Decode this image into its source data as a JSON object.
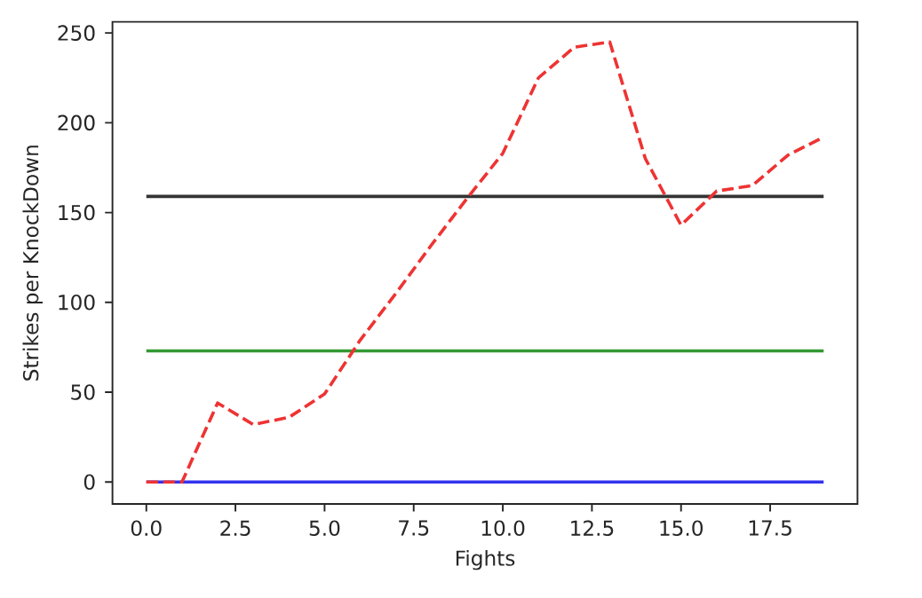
{
  "chart_data": {
    "type": "line",
    "xlabel": "Fights",
    "ylabel": "Strikes per KnockDown",
    "xlim": [
      -0.95,
      19.95
    ],
    "ylim": [
      -12.2,
      256.2
    ],
    "xticks": [
      {
        "value": 0,
        "label": "0.0"
      },
      2.5,
      {
        "value": 5,
        "label": "5.0"
      },
      7.5,
      {
        "value": 10,
        "label": "10.0"
      },
      12.5,
      {
        "value": 15,
        "label": "15.0"
      },
      17.5
    ],
    "yticks": [
      0,
      50,
      100,
      150,
      200,
      250
    ],
    "series": [
      {
        "color": "#333333",
        "x": [
          0,
          19
        ],
        "values": [
          159,
          159
        ]
      },
      {
        "color": "#339933",
        "x": [
          0,
          19
        ],
        "values": [
          73,
          73
        ]
      },
      {
        "color": "#3333ee",
        "x": [
          0,
          19
        ],
        "values": [
          0,
          0
        ]
      },
      {
        "color": "#ee3333",
        "x": [
          0,
          1,
          2,
          3,
          4,
          5,
          6,
          7,
          8,
          9,
          10,
          11,
          12,
          13,
          14,
          15,
          16,
          17,
          18,
          19
        ],
        "values": [
          0,
          0,
          44,
          32,
          36,
          49,
          79,
          105,
          132,
          158,
          183,
          225,
          242,
          245,
          180,
          143,
          162,
          165,
          182,
          192
        ],
        "line_style": "dashed"
      }
    ]
  }
}
